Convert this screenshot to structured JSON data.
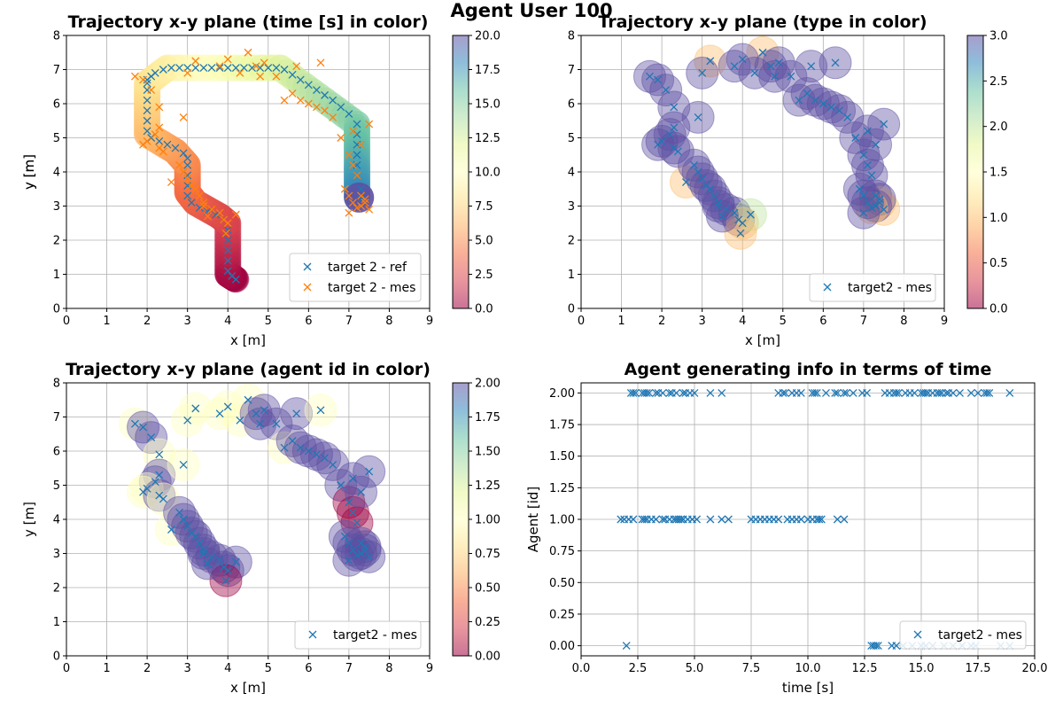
{
  "figure": {
    "suptitle": "Agent User 100"
  },
  "panels": {
    "p1": {
      "title": "Trajectory x-y plane  (time [s] in color)",
      "xlabel": "x [m]",
      "ylabel": "y [m]",
      "xticks": [
        "0",
        "1",
        "2",
        "3",
        "4",
        "5",
        "6",
        "7",
        "8",
        "9"
      ],
      "yticks": [
        "0",
        "1",
        "2",
        "3",
        "4",
        "5",
        "6",
        "7",
        "8"
      ],
      "colorbar_ticks": [
        "0.0",
        "2.5",
        "5.0",
        "7.5",
        "10.0",
        "12.5",
        "15.0",
        "17.5",
        "20.0"
      ],
      "legend": [
        "target 2 - ref",
        "target 2 - mes"
      ]
    },
    "p2": {
      "title": "Trajectory x-y plane (type in color)",
      "xlabel": "x [m]",
      "ylabel": "y [m]",
      "xticks": [
        "0",
        "1",
        "2",
        "3",
        "4",
        "5",
        "6",
        "7",
        "8",
        "9"
      ],
      "yticks": [
        "0",
        "1",
        "2",
        "3",
        "4",
        "5",
        "6",
        "7",
        "8"
      ],
      "colorbar_ticks": [
        "0.0",
        "0.5",
        "1.0",
        "1.5",
        "2.0",
        "2.5",
        "3.0"
      ],
      "legend": [
        "target2 - mes"
      ]
    },
    "p3": {
      "title": "Trajectory x-y plane (agent id in color)",
      "xlabel": "x [m]",
      "ylabel": "y [m]",
      "xticks": [
        "0",
        "1",
        "2",
        "3",
        "4",
        "5",
        "6",
        "7",
        "8",
        "9"
      ],
      "yticks": [
        "0",
        "1",
        "2",
        "3",
        "4",
        "5",
        "6",
        "7",
        "8"
      ],
      "colorbar_ticks": [
        "0.00",
        "0.25",
        "0.50",
        "0.75",
        "1.00",
        "1.25",
        "1.50",
        "1.75",
        "2.00"
      ],
      "legend": [
        "target2 - mes"
      ]
    },
    "p4": {
      "title": "Agent generating info in terms of time",
      "xlabel": "time [s]",
      "ylabel": "Agent [id]",
      "xticks": [
        "0.0",
        "2.5",
        "5.0",
        "7.5",
        "10.0",
        "12.5",
        "15.0",
        "17.5",
        "20.0"
      ],
      "yticks": [
        "0.00",
        "0.25",
        "0.50",
        "0.75",
        "1.00",
        "1.25",
        "1.50",
        "1.75",
        "2.00"
      ],
      "legend": [
        "target2 - mes"
      ]
    }
  },
  "chart_data": [
    {
      "type": "scatter",
      "title": "Trajectory x-y plane  (time [s] in color)",
      "xlabel": "x [m]",
      "ylabel": "y [m]",
      "xlim": [
        0,
        9
      ],
      "ylim": [
        0,
        8
      ],
      "grid": true,
      "legend_position": "lower-right",
      "colorbar": {
        "label_range": [
          0,
          20
        ],
        "cmap": "Spectral"
      },
      "trajectory_ref_path": [
        [
          4.2,
          0.85
        ],
        [
          4.0,
          1.0
        ],
        [
          4.0,
          2.5
        ],
        [
          3.8,
          2.7
        ],
        [
          3.2,
          3.1
        ],
        [
          3.0,
          3.4
        ],
        [
          3.0,
          4.2
        ],
        [
          2.7,
          4.6
        ],
        [
          2.0,
          5.1
        ],
        [
          2.0,
          6.6
        ],
        [
          2.5,
          7.05
        ],
        [
          5.3,
          7.05
        ],
        [
          7.2,
          5.4
        ],
        [
          7.2,
          4.2
        ],
        [
          7.2,
          3.25
        ]
      ],
      "series": [
        {
          "name": "target 2 - ref",
          "marker": "x",
          "color": "#1f77b4",
          "x": [
            4.2,
            4.1,
            4.0,
            4.0,
            4.0,
            4.0,
            4.0,
            3.9,
            3.7,
            3.5,
            3.3,
            3.1,
            3.0,
            3.0,
            3.0,
            3.0,
            3.0,
            2.9,
            2.7,
            2.5,
            2.3,
            2.1,
            2.0,
            2.0,
            2.0,
            2.0,
            2.0,
            2.0,
            2.0,
            2.1,
            2.2,
            2.4,
            2.6,
            2.8,
            3.0,
            3.2,
            3.4,
            3.6,
            3.8,
            4.0,
            4.2,
            4.4,
            4.6,
            4.8,
            5.0,
            5.2,
            5.4,
            5.6,
            5.8,
            6.0,
            6.2,
            6.4,
            6.6,
            6.8,
            7.0,
            7.2,
            7.2,
            7.2,
            7.2,
            7.2,
            7.2,
            7.3,
            7.3
          ],
          "y": [
            0.85,
            0.95,
            1.1,
            1.4,
            1.7,
            2.0,
            2.3,
            2.6,
            2.75,
            2.85,
            2.95,
            3.1,
            3.3,
            3.6,
            3.9,
            4.2,
            4.4,
            4.55,
            4.7,
            4.8,
            4.9,
            5.0,
            5.2,
            5.5,
            5.8,
            6.1,
            6.4,
            6.6,
            6.7,
            6.8,
            6.9,
            7.0,
            7.05,
            7.05,
            7.05,
            7.05,
            7.05,
            7.05,
            7.05,
            7.05,
            7.05,
            7.05,
            7.05,
            7.05,
            7.05,
            7.05,
            7.0,
            6.85,
            6.7,
            6.55,
            6.4,
            6.25,
            6.1,
            5.9,
            5.7,
            5.4,
            5.1,
            4.8,
            4.5,
            4.2,
            3.9,
            3.5,
            3.2
          ]
        },
        {
          "name": "target 2 - mes",
          "marker": "x",
          "color": "#ff7f0e",
          "x": [
            1.7,
            1.9,
            2.1,
            2.3,
            2.3,
            2.2,
            2.0,
            1.9,
            2.3,
            2.4,
            2.6,
            2.8,
            2.9,
            3.0,
            3.1,
            3.2,
            3.3,
            3.4,
            3.6,
            3.8,
            3.9,
            4.0,
            4.2,
            3.95,
            3.2,
            3.0,
            2.9,
            3.4,
            3.5,
            4.5,
            4.3,
            3.8,
            4.0,
            4.7,
            4.9,
            5.2,
            5.4,
            5.6,
            5.8,
            6.0,
            6.2,
            6.4,
            6.6,
            6.8,
            7.0,
            7.1,
            7.2,
            7.3,
            7.4,
            7.5,
            7.4,
            7.3,
            7.2,
            7.1,
            7.0,
            6.9,
            7.0,
            7.3,
            7.5,
            7.1,
            5.7,
            4.8,
            6.3
          ],
          "y": [
            6.8,
            6.7,
            6.4,
            5.9,
            5.3,
            5.1,
            4.9,
            4.8,
            4.7,
            4.6,
            3.7,
            4.2,
            4.0,
            3.8,
            3.6,
            3.5,
            3.3,
            3.1,
            2.9,
            2.8,
            2.6,
            2.5,
            2.75,
            2.2,
            7.25,
            6.9,
            5.6,
            3.0,
            2.7,
            7.5,
            6.9,
            7.1,
            7.3,
            7.1,
            7.2,
            6.8,
            6.1,
            6.3,
            6.1,
            6.0,
            5.9,
            5.8,
            5.6,
            5.0,
            4.5,
            4.2,
            3.9,
            3.3,
            3.1,
            2.9,
            3.2,
            3.0,
            2.95,
            3.1,
            2.8,
            3.5,
            3.3,
            4.8,
            5.4,
            5.2,
            7.1,
            6.8,
            7.2
          ]
        }
      ]
    },
    {
      "type": "scatter",
      "title": "Trajectory x-y plane (type in color)",
      "xlabel": "x [m]",
      "ylabel": "y [m]",
      "xlim": [
        0,
        9
      ],
      "ylim": [
        0,
        8
      ],
      "grid": true,
      "legend_position": "lower-right",
      "colorbar": {
        "label_range": [
          0,
          3
        ],
        "cmap": "Spectral"
      },
      "series": [
        {
          "name": "target2 - mes",
          "marker": "x",
          "color": "#1f77b4",
          "x": [
            1.7,
            1.9,
            2.1,
            2.3,
            2.3,
            2.2,
            2.0,
            1.9,
            2.3,
            2.4,
            2.6,
            2.8,
            2.9,
            3.0,
            3.1,
            3.2,
            3.3,
            3.4,
            3.6,
            3.8,
            3.9,
            4.0,
            4.2,
            3.95,
            3.2,
            3.0,
            2.9,
            3.4,
            3.5,
            4.5,
            4.3,
            3.8,
            4.0,
            4.7,
            4.9,
            5.2,
            5.4,
            5.6,
            5.8,
            6.0,
            6.2,
            6.4,
            6.6,
            6.8,
            7.0,
            7.1,
            7.2,
            7.3,
            7.4,
            7.5,
            7.4,
            7.3,
            7.2,
            7.1,
            7.0,
            6.9,
            7.0,
            7.3,
            7.5,
            7.1,
            5.7,
            4.8,
            6.3
          ],
          "y": [
            6.8,
            6.7,
            6.4,
            5.9,
            5.3,
            5.1,
            4.9,
            4.8,
            4.7,
            4.6,
            3.7,
            4.2,
            4.0,
            3.8,
            3.6,
            3.5,
            3.3,
            3.1,
            2.9,
            2.8,
            2.6,
            2.5,
            2.75,
            2.2,
            7.25,
            6.9,
            5.6,
            3.0,
            2.7,
            7.5,
            6.9,
            7.1,
            7.3,
            7.1,
            7.2,
            6.8,
            6.1,
            6.3,
            6.1,
            6.0,
            5.9,
            5.8,
            5.6,
            5.0,
            4.5,
            4.2,
            3.9,
            3.3,
            3.1,
            2.9,
            3.2,
            3.0,
            2.95,
            3.1,
            2.8,
            3.5,
            3.3,
            4.8,
            5.4,
            5.2,
            7.1,
            6.8,
            7.2
          ],
          "type": [
            3,
            3,
            3,
            3,
            3,
            3,
            3,
            3,
            3,
            3,
            1,
            3,
            3,
            3,
            3,
            3,
            3,
            3,
            3,
            3,
            3,
            1,
            2,
            1,
            1,
            3,
            3,
            3,
            3,
            1,
            3,
            3,
            3,
            3,
            3,
            3,
            3,
            3,
            3,
            3,
            3,
            3,
            3,
            3,
            3,
            3,
            3,
            3,
            1,
            1,
            3,
            3,
            1,
            3,
            3,
            3,
            3,
            3,
            3,
            3,
            3,
            3,
            3
          ]
        }
      ]
    },
    {
      "type": "scatter",
      "title": "Trajectory x-y plane (agent id in color)",
      "xlabel": "x [m]",
      "ylabel": "y [m]",
      "xlim": [
        0,
        9
      ],
      "ylim": [
        0,
        8
      ],
      "grid": true,
      "legend_position": "lower-right",
      "colorbar": {
        "label_range": [
          0,
          2
        ],
        "cmap": "Spectral"
      },
      "series": [
        {
          "name": "target2 - mes",
          "marker": "x",
          "color": "#1f77b4",
          "x": [
            1.7,
            1.9,
            2.1,
            2.3,
            2.3,
            2.2,
            2.0,
            1.9,
            2.3,
            2.4,
            2.6,
            2.8,
            2.9,
            3.0,
            3.1,
            3.2,
            3.3,
            3.4,
            3.6,
            3.8,
            3.9,
            4.0,
            4.2,
            3.95,
            3.2,
            3.0,
            2.9,
            3.4,
            3.5,
            4.5,
            4.3,
            3.8,
            4.0,
            4.7,
            4.9,
            5.2,
            5.4,
            5.6,
            5.8,
            6.0,
            6.2,
            6.4,
            6.6,
            6.8,
            7.0,
            7.1,
            7.2,
            7.3,
            7.4,
            7.5,
            7.4,
            7.3,
            7.2,
            7.1,
            7.0,
            6.9,
            7.0,
            7.3,
            7.5,
            7.1,
            5.7,
            4.8,
            6.3
          ],
          "y": [
            6.8,
            6.7,
            6.4,
            5.9,
            5.3,
            5.1,
            4.9,
            4.8,
            4.7,
            4.6,
            3.7,
            4.2,
            4.0,
            3.8,
            3.6,
            3.5,
            3.3,
            3.1,
            2.9,
            2.8,
            2.6,
            2.5,
            2.75,
            2.2,
            7.25,
            6.9,
            5.6,
            3.0,
            2.7,
            7.5,
            6.9,
            7.1,
            7.3,
            7.1,
            7.2,
            6.8,
            6.1,
            6.3,
            6.1,
            6.0,
            5.9,
            5.8,
            5.6,
            5.0,
            4.5,
            4.2,
            3.9,
            3.3,
            3.1,
            2.9,
            3.2,
            3.0,
            2.95,
            3.1,
            2.8,
            3.5,
            3.3,
            4.8,
            5.4,
            5.2,
            7.1,
            6.8,
            7.2
          ],
          "agent": [
            1,
            2,
            2,
            1,
            2,
            2,
            1,
            1,
            2,
            1,
            1,
            2,
            2,
            2,
            2,
            2,
            2,
            2,
            2,
            2,
            2,
            2,
            2,
            0,
            1,
            1,
            1,
            2,
            2,
            1,
            1,
            1,
            1,
            2,
            2,
            2,
            1,
            2,
            2,
            2,
            2,
            2,
            2,
            2,
            0,
            0,
            0,
            2,
            2,
            2,
            2,
            2,
            2,
            2,
            2,
            2,
            2,
            2,
            2,
            2,
            2,
            2,
            1
          ]
        }
      ]
    },
    {
      "type": "scatter",
      "title": "Agent generating info in terms of time",
      "xlabel": "time [s]",
      "ylabel": "Agent [id]",
      "xlim": [
        0,
        20
      ],
      "ylim": [
        -0.08,
        2.08
      ],
      "grid": true,
      "legend_position": "lower-right",
      "series": [
        {
          "name": "target2 - mes",
          "marker": "x",
          "color": "#1f77b4",
          "t_agent2": [
            2.2,
            2.3,
            2.4,
            2.7,
            2.8,
            2.9,
            3.0,
            3.3,
            3.4,
            3.6,
            3.9,
            4.0,
            4.2,
            4.5,
            4.6,
            4.8,
            5.0,
            5.7,
            6.2,
            8.7,
            8.9,
            9.0,
            9.3,
            9.5,
            9.7,
            10.2,
            10.3,
            10.4,
            10.8,
            11.2,
            11.3,
            11.6,
            11.7,
            12.0,
            12.4,
            12.6,
            13.4,
            13.6,
            13.8,
            13.9,
            14.0,
            14.3,
            14.5,
            14.7,
            15.0,
            15.1,
            15.2,
            15.3,
            15.5,
            15.7,
            15.8,
            15.9,
            16.1,
            16.2,
            16.4,
            16.7,
            17.2,
            17.5,
            17.8,
            17.9,
            18.0,
            18.9
          ],
          "t_agent1": [
            1.75,
            1.9,
            2.1,
            2.3,
            2.7,
            2.8,
            2.9,
            3.1,
            3.3,
            3.6,
            3.7,
            3.9,
            4.1,
            4.2,
            4.3,
            4.4,
            4.5,
            4.7,
            4.9,
            5.1,
            5.7,
            6.2,
            6.5,
            7.5,
            7.7,
            7.9,
            8.1,
            8.3,
            8.5,
            8.7,
            9.1,
            9.3,
            9.5,
            9.7,
            10.0,
            10.2,
            10.4,
            10.5,
            10.6,
            11.3,
            11.6
          ],
          "t_agent0": [
            2.0,
            12.8,
            12.9,
            13.0,
            13.1,
            13.7,
            13.9,
            14.2,
            14.6,
            15.0,
            15.2,
            15.5,
            16.0,
            16.4,
            16.8,
            17.2,
            17.4,
            18.5,
            18.9
          ]
        }
      ]
    }
  ]
}
